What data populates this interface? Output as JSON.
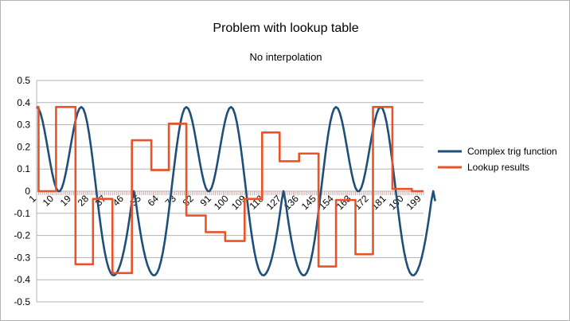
{
  "chart_data": {
    "type": "line",
    "title": "Problem with lookup table",
    "subtitle": "No interpolation",
    "xlabel": "",
    "ylabel": "",
    "ylim": [
      -0.5,
      0.5
    ],
    "y_ticks": [
      "0.5",
      "0.4",
      "0.3",
      "0.2",
      "0.1",
      "0",
      "-0.1",
      "-0.2",
      "-0.3",
      "-0.4",
      "-0.5"
    ],
    "x_range": [
      1,
      200
    ],
    "x_tick_labels": [
      "1",
      "10",
      "19",
      "28",
      "37",
      "46",
      "55",
      "64",
      "73",
      "82",
      "91",
      "100",
      "109",
      "118",
      "127",
      "136",
      "145",
      "154",
      "163",
      "172",
      "181",
      "190",
      "199"
    ],
    "grid": "horizontal",
    "legend_position": "right",
    "series": [
      {
        "name": "Complex trig function",
        "color": "#1f4e79",
        "sample_step": 1,
        "x_start": 1,
        "values": [
          0.38,
          0.373,
          0.352,
          0.319,
          0.277,
          0.229,
          0.178,
          0.128,
          0.082,
          0.043,
          0.015,
          0.0,
          0.0,
          0.015,
          0.043,
          0.082,
          0.128,
          0.178,
          0.229,
          0.277,
          0.319,
          0.352,
          0.373,
          0.38,
          0.372,
          0.348,
          0.31,
          0.259,
          0.198,
          0.129,
          0.056,
          -0.018,
          -0.091,
          -0.159,
          -0.221,
          -0.273,
          -0.315,
          -0.347,
          -0.368,
          -0.379,
          -0.38,
          -0.372,
          -0.356,
          -0.333,
          -0.302,
          -0.264,
          -0.219,
          -0.167,
          -0.109,
          -0.045,
          0.0,
          -0.045,
          -0.109,
          -0.167,
          -0.219,
          -0.264,
          -0.302,
          -0.333,
          -0.356,
          -0.372,
          -0.38,
          -0.379,
          -0.368,
          -0.347,
          -0.315,
          -0.273,
          -0.221,
          -0.159,
          -0.091,
          -0.018,
          0.056,
          0.129,
          0.198,
          0.259,
          0.31,
          0.348,
          0.372,
          0.38,
          0.373,
          0.352,
          0.319,
          0.277,
          0.229,
          0.178,
          0.128,
          0.082,
          0.043,
          0.015,
          0.0,
          0.0,
          0.015,
          0.043,
          0.082,
          0.128,
          0.178,
          0.229,
          0.277,
          0.319,
          0.352,
          0.373,
          0.38,
          0.372,
          0.348,
          0.31,
          0.259,
          0.198,
          0.129,
          0.056,
          -0.018,
          -0.091,
          -0.159,
          -0.221,
          -0.273,
          -0.315,
          -0.347,
          -0.368,
          -0.379,
          -0.38,
          -0.372,
          -0.356,
          -0.333,
          -0.302,
          -0.264,
          -0.219,
          -0.167,
          -0.109,
          -0.045,
          0.0,
          -0.045,
          -0.109,
          -0.167,
          -0.219,
          -0.264,
          -0.302,
          -0.333,
          -0.356,
          -0.372,
          -0.38,
          -0.379,
          -0.368,
          -0.347,
          -0.315,
          -0.273,
          -0.221,
          -0.159,
          -0.091,
          -0.018,
          0.056,
          0.129,
          0.198,
          0.259,
          0.31,
          0.348,
          0.372,
          0.38,
          0.373,
          0.352,
          0.319,
          0.277,
          0.229,
          0.178,
          0.128,
          0.082,
          0.043,
          0.015,
          0.0,
          0.0,
          0.015,
          0.043,
          0.082,
          0.128,
          0.178,
          0.229,
          0.277,
          0.319,
          0.352,
          0.373,
          0.38,
          0.372,
          0.348,
          0.31,
          0.259,
          0.198,
          0.129,
          0.056,
          -0.018,
          -0.091,
          -0.159,
          -0.221,
          -0.273,
          -0.315,
          -0.347,
          -0.368,
          -0.379,
          -0.38,
          -0.372,
          -0.356,
          -0.333,
          -0.302,
          -0.264,
          -0.219,
          -0.167,
          -0.109,
          -0.045,
          0.0,
          -0.045
        ]
      },
      {
        "name": "Lookup results",
        "color": "#e8532a",
        "steps": [
          {
            "x_start": 1,
            "x_end": 2,
            "y": 0.38
          },
          {
            "x_start": 2,
            "x_end": 11,
            "y": 0.0
          },
          {
            "x_start": 11,
            "x_end": 21,
            "y": 0.38
          },
          {
            "x_start": 21,
            "x_end": 30,
            "y": -0.33
          },
          {
            "x_start": 30,
            "x_end": 40,
            "y": -0.035
          },
          {
            "x_start": 40,
            "x_end": 50,
            "y": -0.37
          },
          {
            "x_start": 50,
            "x_end": 60,
            "y": 0.23
          },
          {
            "x_start": 60,
            "x_end": 69,
            "y": 0.095
          },
          {
            "x_start": 69,
            "x_end": 78,
            "y": 0.305
          },
          {
            "x_start": 78,
            "x_end": 88,
            "y": -0.11
          },
          {
            "x_start": 88,
            "x_end": 98,
            "y": -0.185
          },
          {
            "x_start": 98,
            "x_end": 108,
            "y": -0.225
          },
          {
            "x_start": 108,
            "x_end": 117,
            "y": -0.035
          },
          {
            "x_start": 117,
            "x_end": 126,
            "y": 0.265
          },
          {
            "x_start": 126,
            "x_end": 136,
            "y": 0.135
          },
          {
            "x_start": 136,
            "x_end": 146,
            "y": 0.17
          },
          {
            "x_start": 146,
            "x_end": 155,
            "y": -0.34
          },
          {
            "x_start": 155,
            "x_end": 165,
            "y": -0.04
          },
          {
            "x_start": 165,
            "x_end": 174,
            "y": -0.285
          },
          {
            "x_start": 174,
            "x_end": 184,
            "y": 0.38
          },
          {
            "x_start": 184,
            "x_end": 194,
            "y": 0.01
          },
          {
            "x_start": 194,
            "x_end": 200,
            "y": 0.0
          }
        ]
      }
    ]
  }
}
